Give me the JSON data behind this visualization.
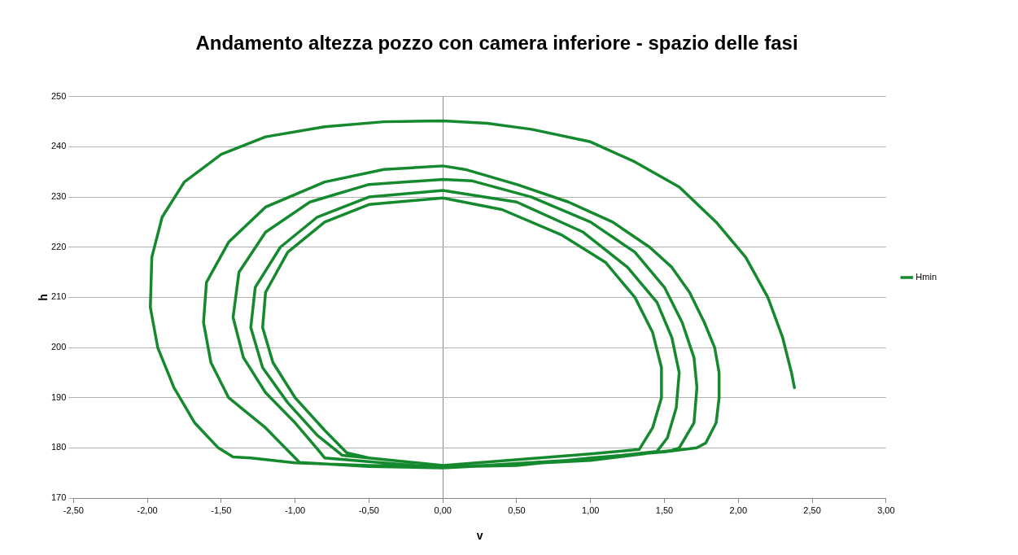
{
  "chart_data": {
    "type": "line",
    "title": "Andamento altezza pozzo con camera inferiore - spazio delle fasi",
    "xlabel": "v",
    "ylabel": "h",
    "xlim": [
      -2.5,
      3.0
    ],
    "xticks": [
      {
        "value": -2.5,
        "label": "-2,50"
      },
      {
        "value": -2,
        "label": "-2,00"
      },
      {
        "value": -1.5,
        "label": "-1,50"
      },
      {
        "value": -1,
        "label": "-1,00"
      },
      {
        "value": -0.5,
        "label": "-0,50"
      },
      {
        "value": 0,
        "label": "0,00"
      },
      {
        "value": 0.5,
        "label": "0,50"
      },
      {
        "value": 1,
        "label": "1,00"
      },
      {
        "value": 1.5,
        "label": "1,50"
      },
      {
        "value": 2,
        "label": "2,00"
      },
      {
        "value": 2.5,
        "label": "2,50"
      },
      {
        "value": 3,
        "label": "3,00"
      }
    ],
    "ylim": [
      170,
      250
    ],
    "yticks": [
      170,
      180,
      190,
      200,
      210,
      220,
      230,
      240,
      250
    ],
    "grid": "y",
    "legend": "right",
    "marker": "none",
    "line_style": "solid",
    "series": [
      {
        "name": "Hmin",
        "color": "#15892d",
        "x": [
          2.38,
          2.36,
          2.3,
          2.2,
          2.05,
          1.85,
          1.6,
          1.3,
          1.0,
          0.6,
          0.3,
          0,
          -0.4,
          -0.8,
          -1.2,
          -1.5,
          -1.75,
          -1.9,
          -1.97,
          -1.98,
          -1.93,
          -1.82,
          -1.68,
          -1.52,
          -1.42,
          -1.3,
          -1.0,
          -0.5,
          0,
          0.5,
          1.0,
          1.5,
          1.72,
          1.78,
          1.85,
          1.87,
          1.87,
          1.84,
          1.77,
          1.67,
          1.55,
          1.4,
          1.15,
          0.85,
          0.5,
          0.15,
          0,
          -0.4,
          -0.8,
          -1.2,
          -1.45,
          -1.6,
          -1.62,
          -1.57,
          -1.45,
          -1.2,
          -0.97,
          -0.5,
          0,
          1.0,
          1.55,
          1.6,
          1.7,
          1.72,
          1.7,
          1.62,
          1.5,
          1.3,
          1.0,
          0.6,
          0.2,
          0,
          -0.5,
          -0.9,
          -1.2,
          -1.38,
          -1.42,
          -1.35,
          -1.2,
          -1.0,
          -0.85,
          -0.8,
          0,
          1.0,
          1.45,
          1.52,
          1.58,
          1.6,
          1.55,
          1.45,
          1.25,
          0.95,
          0.5,
          0,
          -0.5,
          -0.85,
          -1.1,
          -1.27,
          -1.3,
          -1.22,
          -1.05,
          -0.85,
          -0.68,
          0,
          1.0,
          1.33,
          1.42,
          1.48,
          1.48,
          1.42,
          1.3,
          1.1,
          0.8,
          0.4,
          0,
          -0.5,
          -0.8,
          -1.05,
          -1.2,
          -1.22,
          -1.15,
          -1.0,
          -0.8,
          -0.65,
          -0.5
        ],
        "values": [
          192,
          195,
          202,
          210,
          218,
          225,
          232,
          237,
          241,
          243.5,
          244.7,
          245.2,
          245,
          244,
          242,
          238.5,
          233,
          226,
          218,
          208,
          200,
          192,
          185,
          180,
          178.2,
          178,
          177,
          176.5,
          176.2,
          176.5,
          178,
          179.2,
          180,
          181,
          185,
          190,
          195,
          200,
          205,
          211,
          216,
          220,
          225,
          229,
          232.5,
          235.5,
          236.2,
          235.5,
          233,
          228,
          221,
          213,
          205,
          197,
          190,
          184,
          177.1,
          176.3,
          176,
          177.5,
          179.5,
          180,
          185,
          192,
          198,
          205,
          212,
          219,
          225,
          230,
          233.2,
          233.5,
          232.5,
          229,
          223,
          215,
          206,
          198,
          191,
          185,
          179.8,
          178,
          176,
          177.8,
          179.3,
          182,
          188,
          195,
          202,
          209,
          216,
          223,
          229,
          231.3,
          230,
          226,
          220,
          212,
          204,
          196,
          189,
          182.5,
          178.5,
          176.5,
          178.8,
          179.7,
          184,
          190,
          196,
          203,
          210,
          217,
          222.5,
          227.5,
          229.8,
          228.5,
          225,
          219,
          211,
          204,
          197,
          190,
          183.5,
          179,
          178
        ]
      }
    ]
  }
}
